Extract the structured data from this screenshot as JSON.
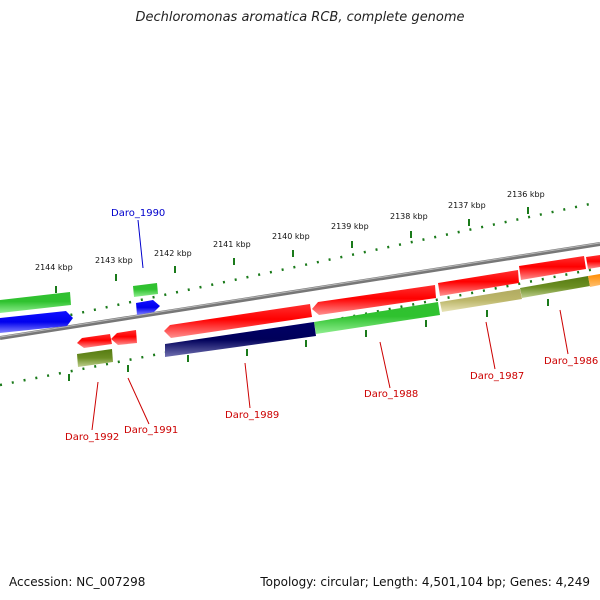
{
  "title": "Dechloromonas aromatica RCB, complete genome",
  "footer": {
    "accession": "Accession: NC_007298",
    "summary": "Topology: circular; Length: 4,501,104 bp; Genes: 4,249"
  },
  "colors": {
    "backbone": "#888888",
    "ticks": "#1a7a1a",
    "label_forward": "#0000cc",
    "label_reverse": "#cc0000"
  },
  "kbp_labels": [
    "2144 kbp",
    "2143 kbp",
    "2142 kbp",
    "2141 kbp",
    "2140 kbp",
    "2139 kbp",
    "2138 kbp",
    "2137 kbp",
    "2136 kbp"
  ],
  "genes": [
    {
      "id": "Daro_1986",
      "label": "Daro_1986"
    },
    {
      "id": "Daro_1987",
      "label": "Daro_1987"
    },
    {
      "id": "Daro_1988",
      "label": "Daro_1988"
    },
    {
      "id": "Daro_1989",
      "label": "Daro_1989"
    },
    {
      "id": "Daro_1990",
      "label": "Daro_1990"
    },
    {
      "id": "Daro_1991",
      "label": "Daro_1991"
    },
    {
      "id": "Daro_1992",
      "label": "Daro_1992"
    }
  ]
}
